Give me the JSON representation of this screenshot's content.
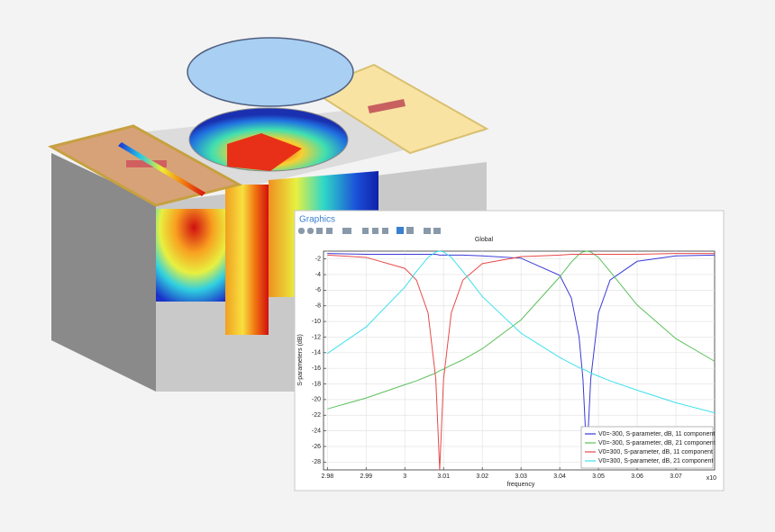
{
  "window": {
    "title": "Graphics"
  },
  "chart_data": {
    "type": "line",
    "title": "Global",
    "x_label": "frequency",
    "y_label": "S-parameters (dB)",
    "x_multiplier": "x10",
    "x": [
      2.98,
      2.99,
      3.0,
      3.003,
      3.006,
      3.008,
      3.009,
      3.01,
      3.012,
      3.015,
      3.02,
      3.03,
      3.04,
      3.043,
      3.045,
      3.046,
      3.047,
      3.048,
      3.05,
      3.053,
      3.06,
      3.07,
      3.08
    ],
    "series": [
      {
        "name": "V0=-300, S-parameter, dB, 11 component",
        "color": "#3a3ad8",
        "values": [
          -1.3,
          -1.4,
          -1.4,
          -1.4,
          -1.4,
          -1.4,
          -1.5,
          -1.5,
          -1.5,
          -1.5,
          -1.6,
          -1.9,
          -4.1,
          -7.0,
          -12.0,
          -17.4,
          -27.5,
          -17.4,
          -8.9,
          -4.7,
          -2.3,
          -1.6,
          -1.5
        ]
      },
      {
        "name": "V0=-300, S-parameter, dB, 21 component",
        "color": "#5cc05c",
        "values": [
          -21.2,
          -19.8,
          -18.1,
          -17.6,
          -17.0,
          -16.6,
          -16.3,
          -16.1,
          -15.6,
          -14.9,
          -13.5,
          -9.8,
          -4.3,
          -2.4,
          -1.4,
          -1.1,
          -1.0,
          -1.1,
          -1.8,
          -3.6,
          -7.9,
          -12.2,
          -15.1
        ]
      },
      {
        "name": "V0=300, S-parameter, dB, 11 component",
        "color": "#e84a4a",
        "values": [
          -1.5,
          -1.8,
          -3.2,
          -4.7,
          -8.9,
          -17.4,
          -29.0,
          -17.4,
          -8.9,
          -4.7,
          -2.6,
          -1.7,
          -1.5,
          -1.4,
          -1.4,
          -1.4,
          -1.4,
          -1.4,
          -1.4,
          -1.4,
          -1.4,
          -1.3,
          -1.3
        ]
      },
      {
        "name": "V0=300, S-parameter, dB, 21 component",
        "color": "#3ee0ee",
        "values": [
          -14.1,
          -10.7,
          -5.6,
          -3.6,
          -1.8,
          -1.1,
          -1.0,
          -1.1,
          -1.8,
          -3.6,
          -6.8,
          -11.5,
          -14.6,
          -15.4,
          -15.9,
          -16.1,
          -16.3,
          -16.6,
          -17.0,
          -17.6,
          -18.8,
          -20.4,
          -21.7
        ]
      }
    ],
    "xlim": [
      2.979,
      3.08
    ],
    "ylim": [
      -29,
      -1
    ],
    "xticks": [
      2.98,
      2.99,
      3,
      3.01,
      3.02,
      3.03,
      3.04,
      3.05,
      3.06,
      3.07
    ],
    "yticks": [
      -2,
      -4,
      -6,
      -8,
      -10,
      -12,
      -14,
      -16,
      -18,
      -20,
      -22,
      -24,
      -26,
      -28
    ],
    "grid": true,
    "legend": "lower right"
  }
}
